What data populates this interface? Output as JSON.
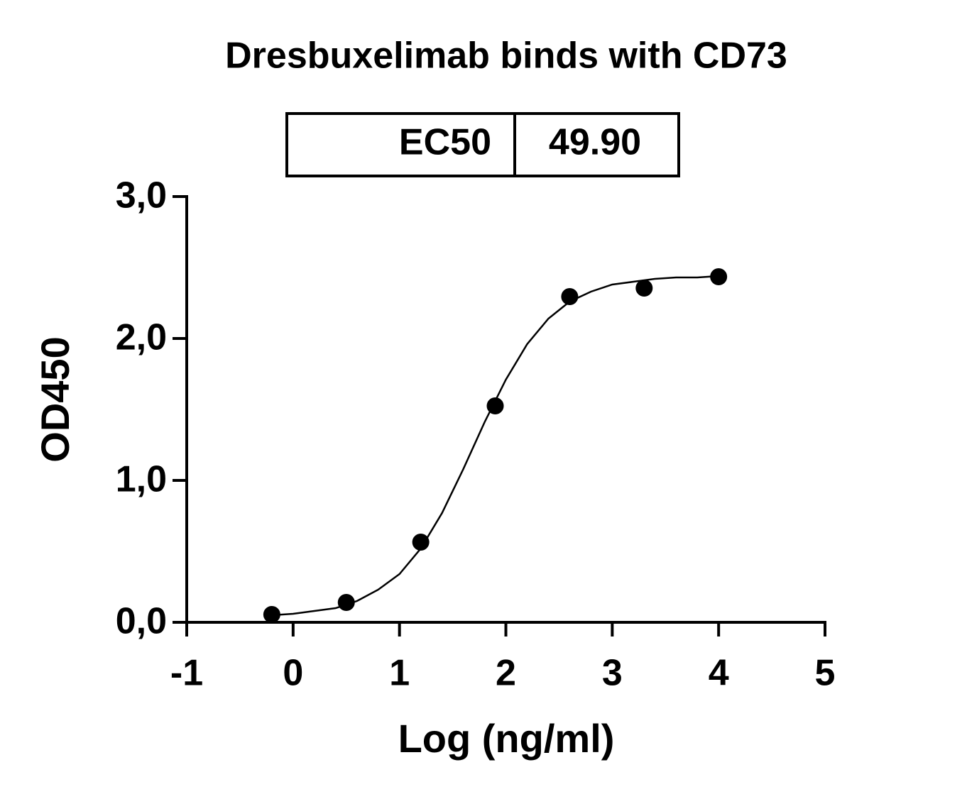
{
  "chart_data": {
    "type": "scatter",
    "title": "Dresbuxelimab binds with CD73",
    "annotation": {
      "label": "EC50",
      "value": "49.90"
    },
    "x_label": "Log (ng/ml)",
    "y_label": "OD450",
    "xlim": [
      -1,
      5
    ],
    "xticks": [
      -1,
      0,
      1,
      2,
      3,
      4,
      5
    ],
    "ylim": [
      0,
      3
    ],
    "yticks": [
      {
        "value": 0,
        "label": "0,0"
      },
      {
        "value": 1,
        "label": "1,0"
      },
      {
        "value": 2,
        "label": "2,0"
      },
      {
        "value": 3,
        "label": "3,0"
      }
    ],
    "series": [
      {
        "color": "#000000",
        "x": [
          -0.2,
          0.5,
          1.2,
          1.9,
          2.6,
          3.3,
          4.0
        ],
        "values": [
          0.055,
          0.14,
          0.565,
          1.525,
          2.295,
          2.355,
          2.435
        ]
      },
      {
        "color": "#000000",
        "x": [
          -0.2,
          0,
          0.2,
          0.4,
          0.6,
          0.8,
          1.0,
          1.2,
          1.4,
          1.6,
          1.8,
          2.0,
          2.2,
          2.4,
          2.6,
          2.8,
          3.0,
          3.2,
          3.4,
          3.6,
          3.8,
          4.0
        ],
        "values": [
          0.05,
          0.06,
          0.08,
          0.1,
          0.15,
          0.23,
          0.34,
          0.52,
          0.77,
          1.08,
          1.41,
          1.71,
          1.96,
          2.14,
          2.26,
          2.33,
          2.38,
          2.4,
          2.42,
          2.43,
          2.43,
          2.44
        ]
      }
    ]
  }
}
